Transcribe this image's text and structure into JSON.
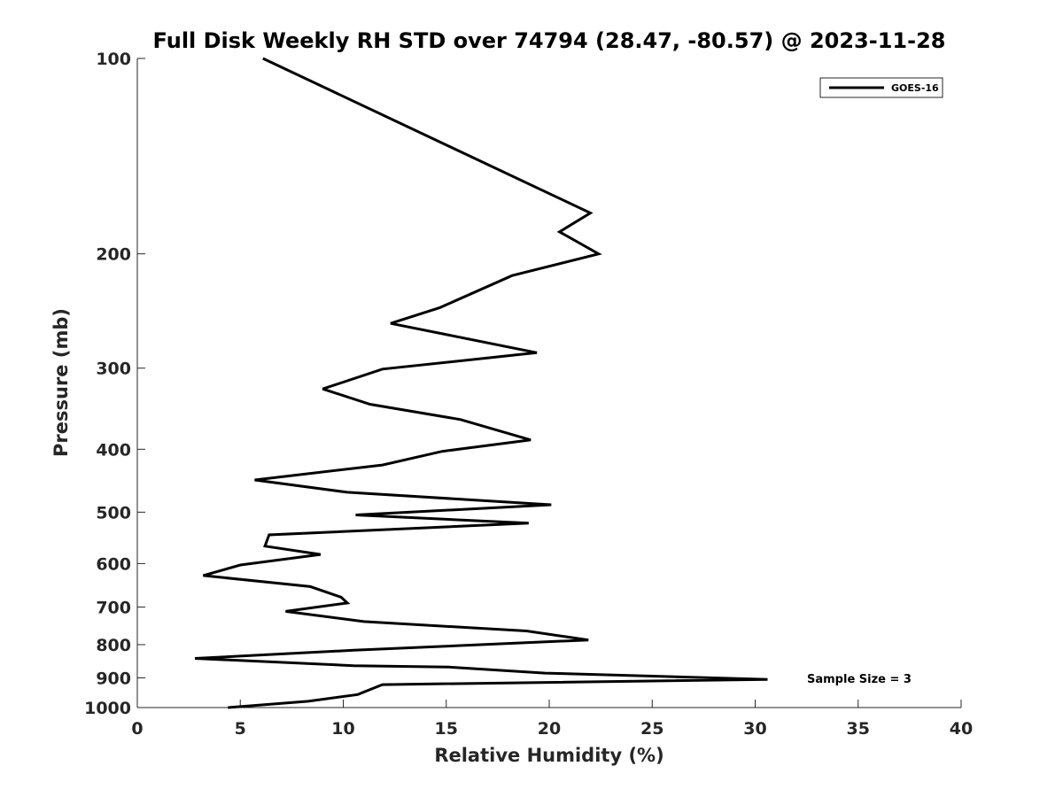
{
  "chart_data": {
    "type": "line",
    "title": "Full Disk Weekly RH STD over 74794 (28.47, -80.57) @ 2023-11-28",
    "xlabel": "Relative Humidity (%)",
    "ylabel": "Pressure (mb)",
    "xlim": [
      0,
      40
    ],
    "ylim": [
      100,
      1000
    ],
    "y_scale": "log",
    "y_reversed": true,
    "x_ticks": [
      0,
      5,
      10,
      15,
      20,
      25,
      30,
      35,
      40
    ],
    "x_tick_labels": [
      "0",
      "5",
      "10",
      "15",
      "20",
      "25",
      "30",
      "35",
      "40"
    ],
    "y_ticks": [
      100,
      200,
      300,
      400,
      500,
      600,
      700,
      800,
      900,
      1000
    ],
    "y_tick_labels": [
      "100",
      "200",
      "300",
      "400",
      "500",
      "600",
      "700",
      "800",
      "900",
      "1000"
    ],
    "grid": false,
    "legend_position": "top-right",
    "series": [
      {
        "name": "GOES-16",
        "color": "#000000",
        "x": [
          6.1,
          22.0,
          20.5,
          22.4,
          18.2,
          14.7,
          12.3,
          19.4,
          11.9,
          9.0,
          11.3,
          15.7,
          19.1,
          14.8,
          11.9,
          5.7,
          10.2,
          20.1,
          10.6,
          19.0,
          6.4,
          6.2,
          8.9,
          5.0,
          3.2,
          8.4,
          9.9,
          10.2,
          7.2,
          11.0,
          18.9,
          21.9,
          10.5,
          2.8,
          10.5,
          15.1,
          19.8,
          30.6,
          11.9,
          11.2,
          10.7,
          8.3,
          4.4
        ],
        "y": [
          100,
          173,
          185,
          200,
          216,
          242,
          256,
          284,
          301,
          323,
          341,
          360,
          387,
          403,
          423,
          446,
          466,
          487,
          505,
          520,
          542,
          564,
          581,
          603,
          626,
          651,
          676,
          690,
          711,
          737,
          762,
          787,
          816,
          840,
          862,
          866,
          885,
          905,
          922,
          941,
          955,
          978,
          1000
        ]
      }
    ],
    "annotations": [
      "Sample Size = 3"
    ]
  }
}
